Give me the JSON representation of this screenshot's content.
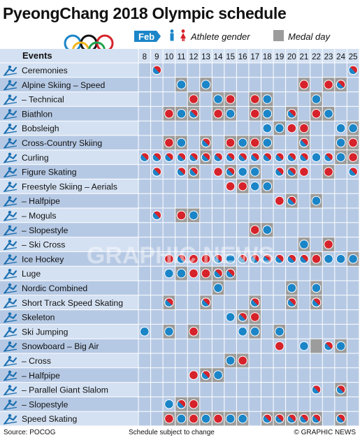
{
  "title": "PyeongChang 2018 Olympic schedule",
  "legend": {
    "month": "Feb",
    "athlete_gender": "Athlete gender",
    "medal_day": "Medal day"
  },
  "events_header": "Events",
  "footer": {
    "source": "Source: POCOG",
    "note": "Schedule subject to change",
    "credit": "© GRAPHIC NEWS"
  },
  "watermark": "GRAPHIC NEWS",
  "colors": {
    "men": "#1b85c8",
    "women": "#d6232b",
    "mixed_men": "#1b85c8",
    "medal_day": "#9c9c9c",
    "row_dark": "#b6c9e4",
    "row_light": "#d4e1f2",
    "header_bg": "#d4e1f2",
    "month_tab": "#1b85c8"
  },
  "chart_data": {
    "type": "table",
    "columns": [
      8,
      9,
      10,
      11,
      12,
      13,
      14,
      15,
      16,
      17,
      18,
      19,
      20,
      21,
      22,
      23,
      24,
      25
    ],
    "rows": [
      {
        "event": "Ceremonies",
        "icon": "ceremonies-icon",
        "sessions": [
          [
            9,
            "mixed"
          ],
          [
            25,
            "mixed"
          ]
        ],
        "medal_days": []
      },
      {
        "event": "Alpine Skiing – Speed",
        "icon": "alpine-skiing-icon",
        "sessions": [
          [
            11,
            "men"
          ],
          [
            13,
            "men"
          ],
          [
            21,
            "women"
          ],
          [
            23,
            "women"
          ],
          [
            24,
            "mixed"
          ]
        ],
        "medal_days": [
          11,
          13,
          21,
          23,
          24
        ]
      },
      {
        "event": "– Technical",
        "icon": "alpine-technical-icon",
        "sessions": [
          [
            12,
            "women"
          ],
          [
            14,
            "men"
          ],
          [
            15,
            "women"
          ],
          [
            17,
            "women"
          ],
          [
            18,
            "men"
          ],
          [
            22,
            "men"
          ]
        ],
        "medal_days": [
          12,
          14,
          15,
          17,
          18,
          22
        ]
      },
      {
        "event": "Biathlon",
        "icon": "biathlon-icon",
        "sessions": [
          [
            10,
            "women"
          ],
          [
            11,
            "men"
          ],
          [
            12,
            "mixed"
          ],
          [
            14,
            "women"
          ],
          [
            15,
            "men"
          ],
          [
            17,
            "women"
          ],
          [
            18,
            "men"
          ],
          [
            20,
            "mixed"
          ],
          [
            22,
            "women"
          ],
          [
            23,
            "men"
          ]
        ],
        "medal_days": [
          10,
          11,
          12,
          14,
          15,
          17,
          18,
          20,
          22,
          23
        ]
      },
      {
        "event": "Bobsleigh",
        "icon": "bobsleigh-icon",
        "sessions": [
          [
            18,
            "men"
          ],
          [
            19,
            "men"
          ],
          [
            20,
            "women"
          ],
          [
            21,
            "women"
          ],
          [
            24,
            "men"
          ],
          [
            25,
            "men"
          ]
        ],
        "medal_days": [
          19,
          21,
          25
        ]
      },
      {
        "event": "Cross-Country Skiing",
        "icon": "cross-country-icon",
        "sessions": [
          [
            10,
            "women"
          ],
          [
            11,
            "men"
          ],
          [
            13,
            "mixed"
          ],
          [
            15,
            "women"
          ],
          [
            16,
            "men"
          ],
          [
            17,
            "women"
          ],
          [
            18,
            "men"
          ],
          [
            21,
            "mixed"
          ],
          [
            24,
            "men"
          ],
          [
            25,
            "women"
          ]
        ],
        "medal_days": [
          10,
          11,
          13,
          15,
          16,
          17,
          18,
          21,
          24,
          25
        ]
      },
      {
        "event": "Curling",
        "icon": "curling-icon",
        "sessions": [
          [
            8,
            "mixed"
          ],
          [
            9,
            "mixed"
          ],
          [
            10,
            "mixed"
          ],
          [
            11,
            "mixed"
          ],
          [
            12,
            "mixed"
          ],
          [
            13,
            "mixed"
          ],
          [
            14,
            "mixed"
          ],
          [
            15,
            "mixed"
          ],
          [
            16,
            "mixed"
          ],
          [
            17,
            "mixed"
          ],
          [
            18,
            "mixed"
          ],
          [
            19,
            "mixed"
          ],
          [
            20,
            "mixed"
          ],
          [
            21,
            "mixed"
          ],
          [
            22,
            "men"
          ],
          [
            23,
            "mixed"
          ],
          [
            24,
            "men"
          ],
          [
            25,
            "women"
          ]
        ],
        "medal_days": [
          13,
          24,
          25
        ]
      },
      {
        "event": "Figure Skating",
        "icon": "figure-skating-icon",
        "sessions": [
          [
            9,
            "mixed"
          ],
          [
            11,
            "mixed"
          ],
          [
            12,
            "mixed"
          ],
          [
            14,
            "women"
          ],
          [
            15,
            "mixed"
          ],
          [
            16,
            "men"
          ],
          [
            17,
            "men"
          ],
          [
            19,
            "mixed"
          ],
          [
            20,
            "mixed"
          ],
          [
            21,
            "women"
          ],
          [
            23,
            "women"
          ],
          [
            25,
            "mixed"
          ]
        ],
        "medal_days": [
          12,
          15,
          17,
          20,
          23
        ]
      },
      {
        "event": "Freestyle Skiing – Aerials",
        "icon": "aerials-icon",
        "sessions": [
          [
            15,
            "women"
          ],
          [
            16,
            "women"
          ],
          [
            17,
            "men"
          ],
          [
            18,
            "men"
          ]
        ],
        "medal_days": [
          16,
          18
        ]
      },
      {
        "event": "– Halfpipe",
        "icon": "halfpipe-ski-icon",
        "sessions": [
          [
            19,
            "women"
          ],
          [
            20,
            "mixed"
          ],
          [
            22,
            "men"
          ]
        ],
        "medal_days": [
          20,
          22
        ]
      },
      {
        "event": "– Moguls",
        "icon": "moguls-icon",
        "sessions": [
          [
            9,
            "mixed"
          ],
          [
            11,
            "women"
          ],
          [
            12,
            "men"
          ]
        ],
        "medal_days": [
          11,
          12
        ]
      },
      {
        "event": "– Slopestyle",
        "icon": "slopestyle-ski-icon",
        "sessions": [
          [
            17,
            "women"
          ],
          [
            18,
            "men"
          ]
        ],
        "medal_days": [
          17,
          18
        ]
      },
      {
        "event": "– Ski Cross",
        "icon": "ski-cross-icon",
        "sessions": [
          [
            21,
            "men"
          ],
          [
            23,
            "women"
          ]
        ],
        "medal_days": [
          21,
          23
        ]
      },
      {
        "event": "Ice Hockey",
        "icon": "ice-hockey-icon",
        "sessions": [
          [
            10,
            "women"
          ],
          [
            11,
            "mixed"
          ],
          [
            12,
            "women"
          ],
          [
            13,
            "women"
          ],
          [
            14,
            "mixed"
          ],
          [
            15,
            "men"
          ],
          [
            16,
            "mixed"
          ],
          [
            17,
            "mixed"
          ],
          [
            18,
            "mixed"
          ],
          [
            19,
            "mixed"
          ],
          [
            20,
            "mixed"
          ],
          [
            21,
            "mixed"
          ],
          [
            22,
            "women"
          ],
          [
            23,
            "men"
          ],
          [
            24,
            "men"
          ],
          [
            25,
            "men"
          ]
        ],
        "medal_days": [
          22,
          25
        ]
      },
      {
        "event": "Luge",
        "icon": "luge-icon",
        "sessions": [
          [
            10,
            "men"
          ],
          [
            11,
            "men"
          ],
          [
            12,
            "women"
          ],
          [
            13,
            "women"
          ],
          [
            14,
            "mixed"
          ],
          [
            15,
            "mixed"
          ]
        ],
        "medal_days": [
          11,
          13,
          14,
          15
        ]
      },
      {
        "event": "Nordic Combined",
        "icon": "nordic-combined-icon",
        "sessions": [
          [
            14,
            "men"
          ],
          [
            20,
            "men"
          ],
          [
            22,
            "men"
          ]
        ],
        "medal_days": [
          14,
          20,
          22
        ]
      },
      {
        "event": "Short Track Speed Skating",
        "icon": "short-track-icon",
        "sessions": [
          [
            10,
            "mixed"
          ],
          [
            13,
            "mixed"
          ],
          [
            17,
            "mixed"
          ],
          [
            20,
            "mixed"
          ],
          [
            22,
            "mixed"
          ]
        ],
        "medal_days": [
          10,
          13,
          17,
          20,
          22
        ]
      },
      {
        "event": "Skeleton",
        "icon": "skeleton-icon",
        "sessions": [
          [
            15,
            "men"
          ],
          [
            16,
            "mixed"
          ],
          [
            17,
            "women"
          ]
        ],
        "medal_days": [
          16,
          17
        ]
      },
      {
        "event": "Ski Jumping",
        "icon": "ski-jumping-icon",
        "sessions": [
          [
            8,
            "men"
          ],
          [
            10,
            "men"
          ],
          [
            12,
            "women"
          ],
          [
            16,
            "men"
          ],
          [
            17,
            "men"
          ],
          [
            19,
            "men"
          ]
        ],
        "medal_days": [
          10,
          12,
          17,
          19
        ]
      },
      {
        "event": "Snowboard – Big Air",
        "icon": "big-air-icon",
        "sessions": [
          [
            19,
            "women"
          ],
          [
            21,
            "men"
          ],
          [
            23,
            "mixed"
          ],
          [
            24,
            "men"
          ]
        ],
        "medal_days": [
          22,
          24
        ]
      },
      {
        "event": "– Cross",
        "icon": "snowboard-cross-icon",
        "sessions": [
          [
            15,
            "men"
          ],
          [
            16,
            "women"
          ]
        ],
        "medal_days": [
          15,
          16
        ]
      },
      {
        "event": "– Halfpipe",
        "icon": "halfpipe-snowboard-icon",
        "sessions": [
          [
            12,
            "women"
          ],
          [
            13,
            "mixed"
          ],
          [
            14,
            "men"
          ]
        ],
        "medal_days": [
          13,
          14
        ]
      },
      {
        "event": "– Parallel Giant Slalom",
        "icon": "parallel-slalom-icon",
        "sessions": [
          [
            22,
            "mixed"
          ],
          [
            24,
            "mixed"
          ]
        ],
        "medal_days": [
          24
        ]
      },
      {
        "event": "– Slopestyle",
        "icon": "slopestyle-snowboard-icon",
        "sessions": [
          [
            10,
            "men"
          ],
          [
            11,
            "mixed"
          ],
          [
            12,
            "women"
          ]
        ],
        "medal_days": [
          11,
          12
        ]
      },
      {
        "event": "Speed Skating",
        "icon": "speed-skating-icon",
        "sessions": [
          [
            10,
            "women"
          ],
          [
            11,
            "men"
          ],
          [
            12,
            "women"
          ],
          [
            13,
            "men"
          ],
          [
            14,
            "women"
          ],
          [
            15,
            "men"
          ],
          [
            16,
            "men"
          ],
          [
            18,
            "mixed"
          ],
          [
            19,
            "mixed"
          ],
          [
            20,
            "mixed"
          ],
          [
            21,
            "mixed"
          ],
          [
            22,
            "mixed"
          ],
          [
            24,
            "mixed"
          ]
        ],
        "medal_days": [
          10,
          11,
          12,
          13,
          14,
          15,
          16,
          18,
          19,
          20,
          21,
          22,
          24
        ]
      }
    ]
  }
}
